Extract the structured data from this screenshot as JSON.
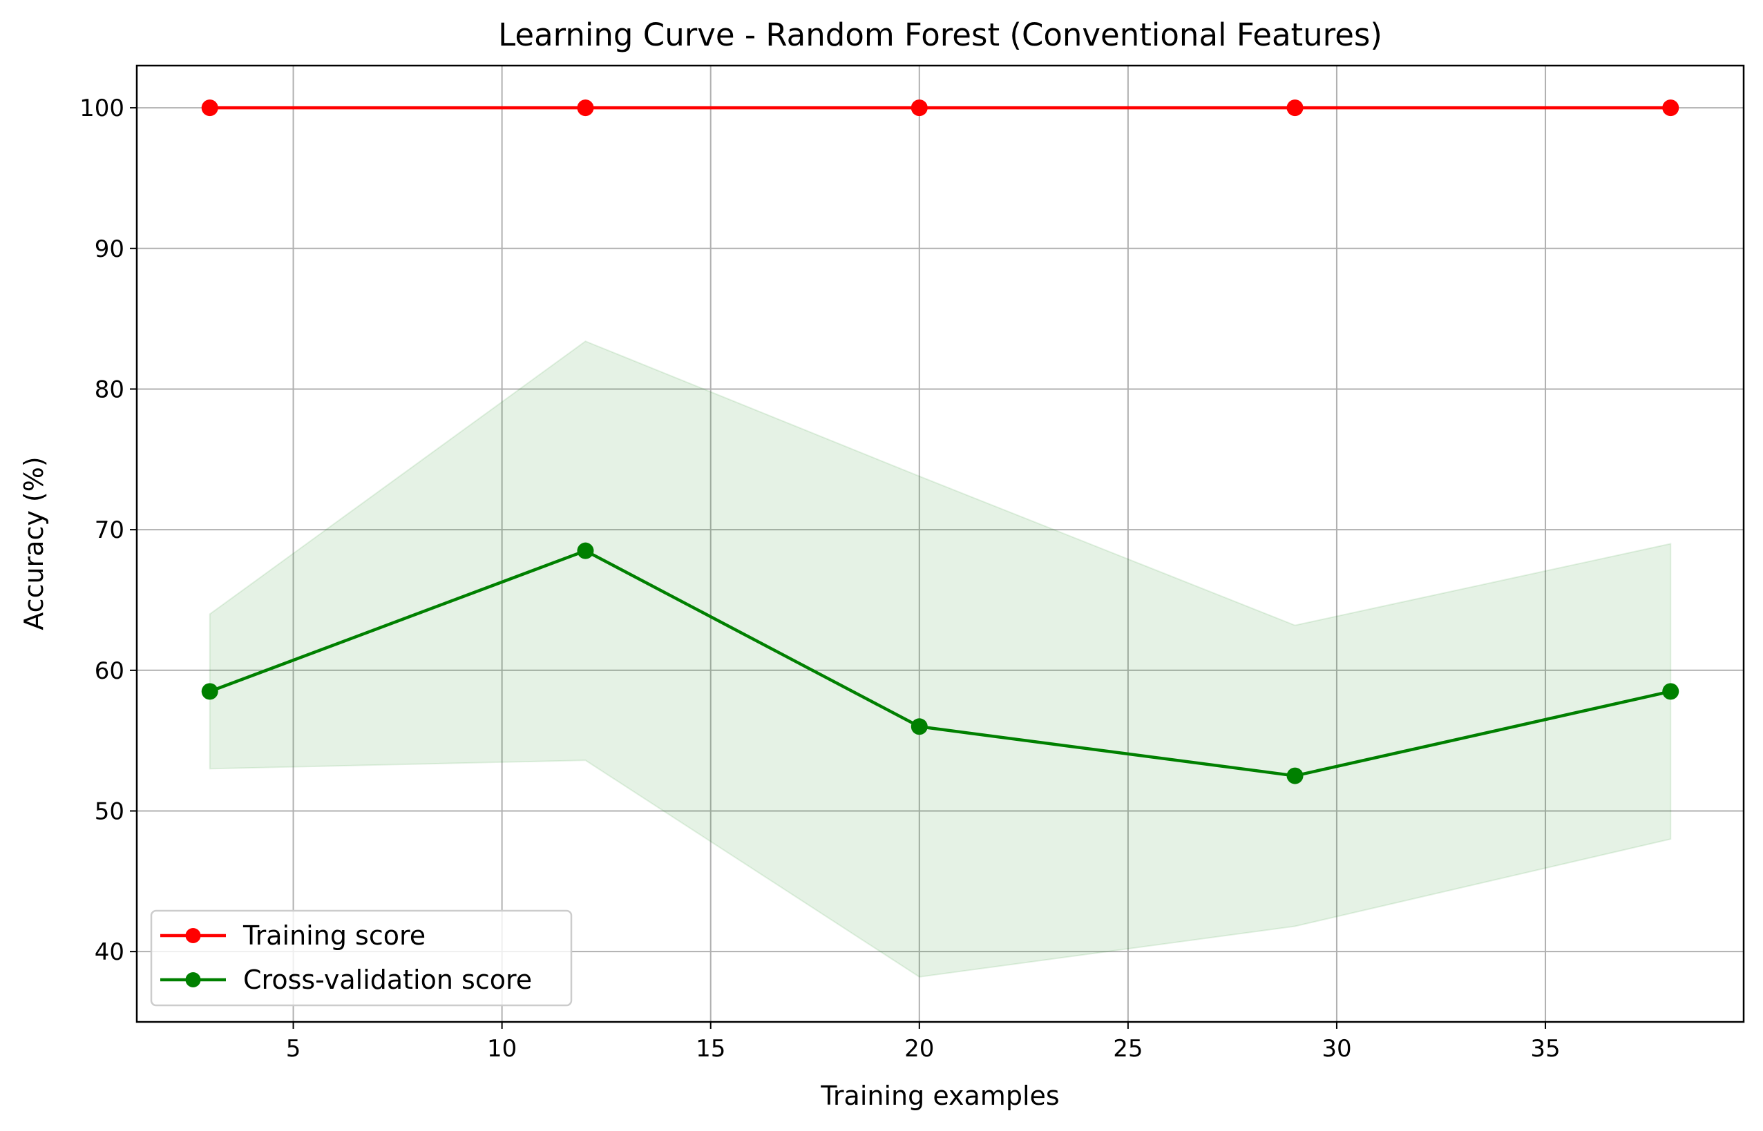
{
  "chart_data": {
    "type": "line",
    "title": "Learning Curve - Random Forest (Conventional Features)",
    "xlabel": "Training examples",
    "ylabel": "Accuracy (%)",
    "xlim": [
      1.25,
      39.75
    ],
    "ylim": [
      35.0,
      103.0
    ],
    "xticks": [
      5,
      10,
      15,
      20,
      25,
      30,
      35
    ],
    "yticks": [
      40,
      50,
      60,
      70,
      80,
      90,
      100
    ],
    "grid": true,
    "legend_position": "lower-left",
    "x": [
      3,
      12,
      20,
      29,
      38
    ],
    "series": [
      {
        "name": "Training score",
        "color": "#ff0000",
        "marker": "circle",
        "values": [
          100,
          100,
          100,
          100,
          100
        ]
      },
      {
        "name": "Cross-validation score",
        "color": "#008000",
        "marker": "circle",
        "values": [
          58.5,
          68.5,
          56.0,
          52.5,
          58.5
        ],
        "band": {
          "color": "#008000",
          "upper": [
            64.0,
            83.4,
            73.8,
            63.2,
            69.0
          ],
          "lower": [
            53.0,
            53.6,
            38.2,
            41.8,
            48.0
          ]
        }
      }
    ]
  }
}
